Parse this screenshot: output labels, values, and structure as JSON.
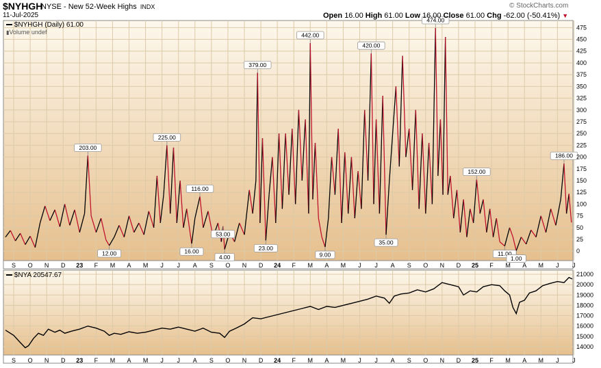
{
  "header": {
    "symbol": "$NYHGH",
    "description": "NYSE - New 52-Week Highs",
    "exchange": "INDX",
    "date": "11-Jul-2025",
    "watermark": "© StockCharts.com",
    "ohlc": {
      "open_label": "Open",
      "open": "16.00",
      "high_label": "High",
      "high": "61.00",
      "low_label": "Low",
      "low": "16.00",
      "close_label": "Close",
      "close": "61.00",
      "chg_label": "Chg",
      "chg": "-62.00 (-50.41%)"
    }
  },
  "colors": {
    "up": "#000000",
    "down": "#c0122c",
    "bg_top": "#fdf8ec",
    "bg_bottom": "#e6bf8d",
    "grid": "#dccaa8"
  },
  "chart_data": [
    {
      "type": "line",
      "legend": "$NYHGH (Daily) 61.00",
      "sublegend": "Volume undef",
      "ylim": [
        -20,
        490
      ],
      "y_ticks": [
        0,
        25,
        50,
        75,
        100,
        125,
        150,
        175,
        200,
        225,
        250,
        275,
        300,
        325,
        350,
        375,
        400,
        425,
        450,
        475
      ],
      "x_range_months": [
        0,
        34.4
      ],
      "x_tick_labels": [
        "S",
        "O",
        "N",
        "D",
        "23",
        "F",
        "M",
        "A",
        "M",
        "J",
        "J",
        "A",
        "S",
        "O",
        "N",
        "D",
        "24",
        "F",
        "M",
        "A",
        "M",
        "J",
        "J",
        "A",
        "S",
        "O",
        "N",
        "D",
        "25",
        "F",
        "M",
        "A",
        "M",
        "J",
        "J"
      ],
      "annotations": [
        {
          "label": "203.00",
          "x": 5.0,
          "y": 203
        },
        {
          "label": "12.00",
          "x": 6.3,
          "y": 12
        },
        {
          "label": "225.00",
          "x": 9.8,
          "y": 225
        },
        {
          "label": "116.00",
          "x": 11.8,
          "y": 116
        },
        {
          "label": "16.00",
          "x": 11.3,
          "y": 16
        },
        {
          "label": "53.00",
          "x": 13.2,
          "y": 53
        },
        {
          "label": "4.00",
          "x": 13.3,
          "y": 4
        },
        {
          "label": "379.00",
          "x": 15.3,
          "y": 379
        },
        {
          "label": "23.00",
          "x": 15.8,
          "y": 23
        },
        {
          "label": "442.00",
          "x": 18.5,
          "y": 442
        },
        {
          "label": "9.00",
          "x": 19.4,
          "y": 9
        },
        {
          "label": "420.00",
          "x": 22.2,
          "y": 420
        },
        {
          "label": "35.00",
          "x": 23.1,
          "y": 35
        },
        {
          "label": "474.00",
          "x": 26.1,
          "y": 474
        },
        {
          "label": "152.00",
          "x": 28.6,
          "y": 152
        },
        {
          "label": "11.00",
          "x": 30.3,
          "y": 11
        },
        {
          "label": "1.00",
          "x": 31.0,
          "y": 1
        },
        {
          "label": "186.00",
          "x": 33.9,
          "y": 186
        }
      ],
      "series": [
        {
          "points": [
            [
              0.0,
              30
            ],
            [
              0.3,
              44
            ],
            [
              0.6,
              22
            ],
            [
              0.9,
              38
            ],
            [
              1.2,
              14
            ],
            [
              1.5,
              32
            ],
            [
              1.8,
              8
            ],
            [
              2.1,
              60
            ],
            [
              2.4,
              96
            ],
            [
              2.7,
              65
            ],
            [
              3.0,
              88
            ],
            [
              3.3,
              52
            ],
            [
              3.6,
              100
            ],
            [
              3.9,
              55
            ],
            [
              4.2,
              88
            ],
            [
              4.5,
              40
            ],
            [
              4.8,
              80
            ],
            [
              5.0,
              203
            ],
            [
              5.2,
              75
            ],
            [
              5.5,
              40
            ],
            [
              5.8,
              70
            ],
            [
              6.1,
              24
            ],
            [
              6.3,
              12
            ],
            [
              6.6,
              30
            ],
            [
              6.9,
              55
            ],
            [
              7.2,
              30
            ],
            [
              7.5,
              75
            ],
            [
              7.8,
              40
            ],
            [
              8.1,
              60
            ],
            [
              8.4,
              35
            ],
            [
              8.7,
              85
            ],
            [
              9.0,
              50
            ],
            [
              9.2,
              160
            ],
            [
              9.4,
              60
            ],
            [
              9.6,
              120
            ],
            [
              9.8,
              225
            ],
            [
              10.0,
              80
            ],
            [
              10.2,
              220
            ],
            [
              10.4,
              60
            ],
            [
              10.6,
              150
            ],
            [
              10.8,
              50
            ],
            [
              11.0,
              90
            ],
            [
              11.2,
              40
            ],
            [
              11.3,
              16
            ],
            [
              11.5,
              70
            ],
            [
              11.8,
              116
            ],
            [
              12.0,
              50
            ],
            [
              12.3,
              85
            ],
            [
              12.6,
              30
            ],
            [
              12.9,
              60
            ],
            [
              13.1,
              20
            ],
            [
              13.2,
              53
            ],
            [
              13.3,
              4
            ],
            [
              13.6,
              40
            ],
            [
              13.9,
              20
            ],
            [
              14.2,
              60
            ],
            [
              14.5,
              35
            ],
            [
              14.8,
              130
            ],
            [
              15.0,
              80
            ],
            [
              15.2,
              150
            ],
            [
              15.3,
              379
            ],
            [
              15.45,
              60
            ],
            [
              15.6,
              240
            ],
            [
              15.8,
              23
            ],
            [
              16.0,
              120
            ],
            [
              16.2,
              200
            ],
            [
              16.4,
              60
            ],
            [
              16.6,
              250
            ],
            [
              16.8,
              90
            ],
            [
              17.0,
              250
            ],
            [
              17.2,
              120
            ],
            [
              17.4,
              260
            ],
            [
              17.6,
              100
            ],
            [
              17.8,
              300
            ],
            [
              18.0,
              150
            ],
            [
              18.2,
              280
            ],
            [
              18.4,
              80
            ],
            [
              18.5,
              442
            ],
            [
              18.65,
              110
            ],
            [
              18.8,
              230
            ],
            [
              19.0,
              70
            ],
            [
              19.2,
              30
            ],
            [
              19.4,
              9
            ],
            [
              19.6,
              70
            ],
            [
              19.8,
              200
            ],
            [
              20.0,
              120
            ],
            [
              20.2,
              260
            ],
            [
              20.4,
              60
            ],
            [
              20.6,
              210
            ],
            [
              20.8,
              80
            ],
            [
              21.0,
              200
            ],
            [
              21.2,
              70
            ],
            [
              21.4,
              170
            ],
            [
              21.6,
              90
            ],
            [
              21.8,
              300
            ],
            [
              22.0,
              150
            ],
            [
              22.2,
              420
            ],
            [
              22.35,
              100
            ],
            [
              22.5,
              280
            ],
            [
              22.7,
              80
            ],
            [
              22.9,
              330
            ],
            [
              23.1,
              35
            ],
            [
              23.3,
              150
            ],
            [
              23.5,
              250
            ],
            [
              23.7,
              350
            ],
            [
              23.9,
              180
            ],
            [
              24.1,
              415
            ],
            [
              24.3,
              200
            ],
            [
              24.5,
              260
            ],
            [
              24.7,
              130
            ],
            [
              24.9,
              300
            ],
            [
              25.1,
              90
            ],
            [
              25.3,
              250
            ],
            [
              25.5,
              80
            ],
            [
              25.7,
              230
            ],
            [
              25.9,
              100
            ],
            [
              26.1,
              474
            ],
            [
              26.25,
              160
            ],
            [
              26.4,
              280
            ],
            [
              26.55,
              120
            ],
            [
              26.7,
              455
            ],
            [
              26.85,
              120
            ],
            [
              27.0,
              160
            ],
            [
              27.2,
              70
            ],
            [
              27.4,
              130
            ],
            [
              27.6,
              40
            ],
            [
              27.8,
              110
            ],
            [
              28.0,
              30
            ],
            [
              28.2,
              90
            ],
            [
              28.4,
              60
            ],
            [
              28.6,
              152
            ],
            [
              28.8,
              80
            ],
            [
              29.0,
              110
            ],
            [
              29.2,
              40
            ],
            [
              29.4,
              90
            ],
            [
              29.6,
              30
            ],
            [
              29.8,
              70
            ],
            [
              30.0,
              20
            ],
            [
              30.3,
              11
            ],
            [
              30.6,
              50
            ],
            [
              30.8,
              30
            ],
            [
              31.0,
              1
            ],
            [
              31.3,
              30
            ],
            [
              31.6,
              15
            ],
            [
              31.9,
              45
            ],
            [
              32.2,
              30
            ],
            [
              32.5,
              75
            ],
            [
              32.8,
              40
            ],
            [
              33.1,
              90
            ],
            [
              33.4,
              55
            ],
            [
              33.7,
              110
            ],
            [
              33.9,
              186
            ],
            [
              34.05,
              80
            ],
            [
              34.2,
              122
            ],
            [
              34.35,
              61
            ]
          ]
        }
      ]
    },
    {
      "type": "line",
      "legend": "$NYA 20547.67",
      "ylim": [
        13200,
        21400
      ],
      "y_ticks": [
        14000,
        15000,
        16000,
        17000,
        18000,
        19000,
        20000,
        21000
      ],
      "series": [
        {
          "points": [
            [
              0.0,
              15600
            ],
            [
              0.5,
              15100
            ],
            [
              0.9,
              14400
            ],
            [
              1.2,
              13900
            ],
            [
              1.4,
              14100
            ],
            [
              1.7,
              14800
            ],
            [
              2.0,
              15300
            ],
            [
              2.3,
              15100
            ],
            [
              2.6,
              15700
            ],
            [
              3.0,
              15400
            ],
            [
              3.3,
              15600
            ],
            [
              3.6,
              15300
            ],
            [
              4.0,
              15500
            ],
            [
              4.5,
              15700
            ],
            [
              5.0,
              16000
            ],
            [
              5.5,
              15800
            ],
            [
              6.0,
              15500
            ],
            [
              6.3,
              15100
            ],
            [
              6.6,
              15300
            ],
            [
              7.0,
              15200
            ],
            [
              7.5,
              15450
            ],
            [
              8.0,
              15300
            ],
            [
              8.5,
              15400
            ],
            [
              9.0,
              15600
            ],
            [
              9.5,
              15800
            ],
            [
              10.0,
              15700
            ],
            [
              10.5,
              15900
            ],
            [
              11.0,
              15700
            ],
            [
              11.5,
              15500
            ],
            [
              12.0,
              15800
            ],
            [
              12.5,
              15400
            ],
            [
              13.0,
              15300
            ],
            [
              13.3,
              14900
            ],
            [
              13.6,
              15500
            ],
            [
              14.0,
              15800
            ],
            [
              14.5,
              16200
            ],
            [
              15.0,
              16800
            ],
            [
              15.5,
              16700
            ],
            [
              16.0,
              16900
            ],
            [
              16.5,
              17100
            ],
            [
              17.0,
              17300
            ],
            [
              17.5,
              17500
            ],
            [
              18.0,
              17700
            ],
            [
              18.5,
              17900
            ],
            [
              19.0,
              17600
            ],
            [
              19.5,
              17900
            ],
            [
              20.0,
              17800
            ],
            [
              20.5,
              18000
            ],
            [
              21.0,
              18200
            ],
            [
              21.5,
              18400
            ],
            [
              22.0,
              18600
            ],
            [
              22.5,
              18900
            ],
            [
              23.0,
              18700
            ],
            [
              23.3,
              18200
            ],
            [
              23.6,
              18900
            ],
            [
              24.0,
              19100
            ],
            [
              24.5,
              19200
            ],
            [
              25.0,
              19500
            ],
            [
              25.5,
              19300
            ],
            [
              26.0,
              19600
            ],
            [
              26.5,
              20200
            ],
            [
              27.0,
              20000
            ],
            [
              27.5,
              19800
            ],
            [
              27.8,
              19000
            ],
            [
              28.2,
              19400
            ],
            [
              28.6,
              19300
            ],
            [
              29.0,
              19800
            ],
            [
              29.5,
              20000
            ],
            [
              30.0,
              19900
            ],
            [
              30.3,
              19400
            ],
            [
              30.6,
              19000
            ],
            [
              30.8,
              17800
            ],
            [
              31.0,
              17200
            ],
            [
              31.2,
              18300
            ],
            [
              31.5,
              18500
            ],
            [
              31.8,
              19200
            ],
            [
              32.2,
              19400
            ],
            [
              32.6,
              19900
            ],
            [
              33.0,
              20100
            ],
            [
              33.5,
              20300
            ],
            [
              33.9,
              20200
            ],
            [
              34.2,
              20700
            ],
            [
              34.4,
              20550
            ]
          ]
        }
      ]
    }
  ]
}
